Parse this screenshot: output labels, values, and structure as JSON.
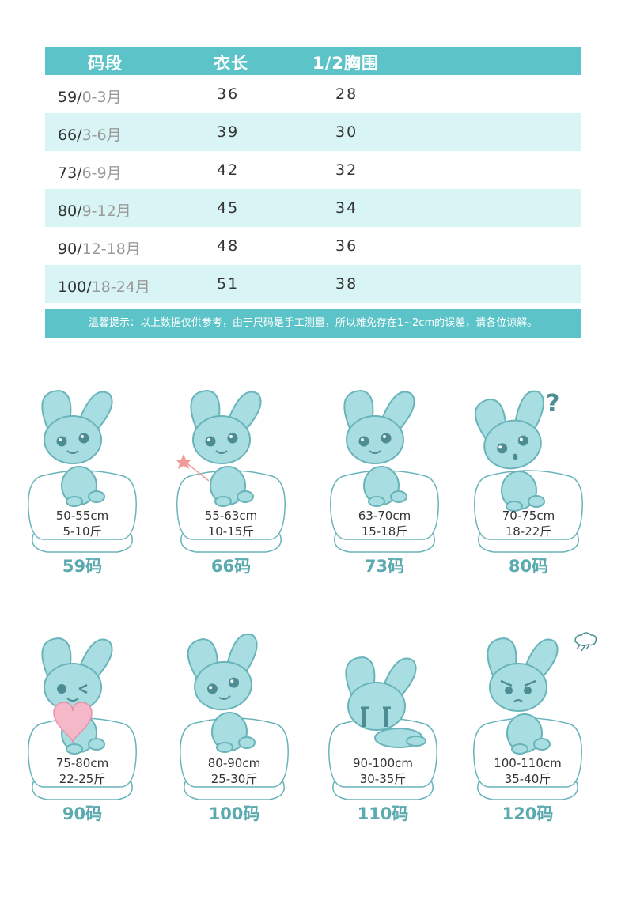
{
  "table": {
    "headers": {
      "size": "码段",
      "length": "衣长",
      "chest": "1/2胸围"
    },
    "rows": [
      {
        "size": "59/",
        "age": "0-3月",
        "length": "36",
        "chest": "28"
      },
      {
        "size": "66/",
        "age": "3-6月",
        "length": "39",
        "chest": "30"
      },
      {
        "size": "73/",
        "age": "6-9月",
        "length": "42",
        "chest": "32"
      },
      {
        "size": "80/",
        "age": "9-12月",
        "length": "45",
        "chest": "34"
      },
      {
        "size": "90/",
        "age": "12-18月",
        "length": "48",
        "chest": "36"
      },
      {
        "size": "100/",
        "age": "18-24月",
        "length": "51",
        "chest": "38"
      }
    ],
    "note": "温馨提示：以上数据仅供参考，由于尺码是手工测量，所以难免存在1~2cm的误差，请各位谅解。"
  },
  "cards": [
    {
      "height": "50-55cm",
      "weight": "5-10斤",
      "label": "59码",
      "pose": "sit-smile"
    },
    {
      "height": "55-63cm",
      "weight": "10-15斤",
      "label": "66码",
      "pose": "star-wand"
    },
    {
      "height": "63-70cm",
      "weight": "15-18斤",
      "label": "73码",
      "pose": "sit-happy"
    },
    {
      "height": "70-75cm",
      "weight": "18-22斤",
      "label": "80码",
      "pose": "question"
    },
    {
      "height": "75-80cm",
      "weight": "22-25斤",
      "label": "90码",
      "pose": "heart-wink"
    },
    {
      "height": "80-90cm",
      "weight": "25-30斤",
      "label": "100码",
      "pose": "lean"
    },
    {
      "height": "90-100cm",
      "weight": "30-35斤",
      "label": "110码",
      "pose": "crying"
    },
    {
      "height": "100-110cm",
      "weight": "35-40斤",
      "label": "120码",
      "pose": "angry"
    }
  ],
  "colors": {
    "accent": "#5cc4c8",
    "row_alt": "#d9f4f4",
    "bunny_fill": "#a8dde1",
    "bunny_stroke": "#68b4ba",
    "label": "#5aaab0",
    "heart": "#f5b8c8",
    "star": "#f29a9a"
  }
}
